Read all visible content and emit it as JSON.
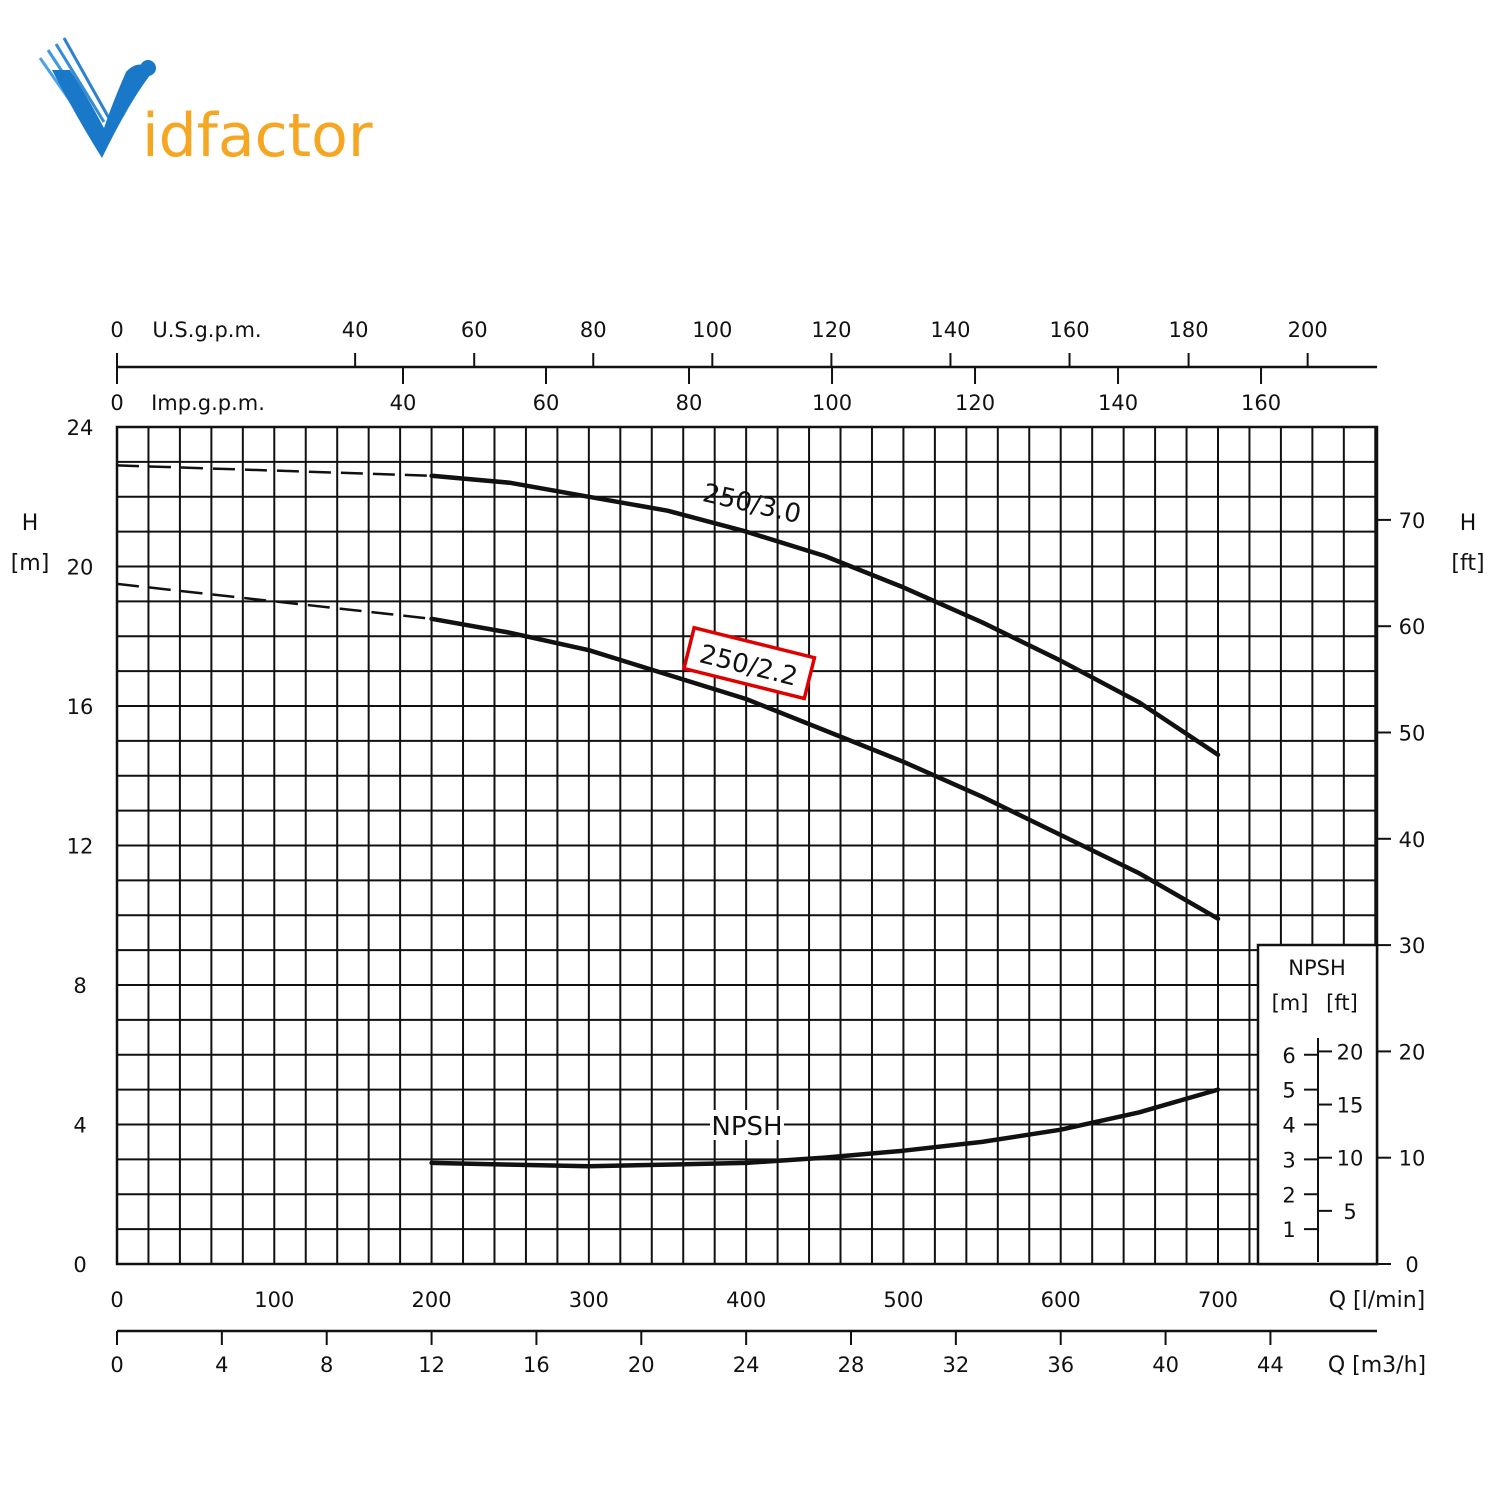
{
  "brand": {
    "name": "Vidfactor",
    "first_letter": "V",
    "rest": "idfactor",
    "blue": "#1a78c8",
    "orange": "#f5a623"
  },
  "chart_data": {
    "type": "line",
    "x": {
      "label": "Q [l/min]",
      "range": [
        0,
        800
      ],
      "ticks": [
        0,
        100,
        200,
        300,
        400,
        500,
        600,
        700
      ]
    },
    "x_m3h": {
      "label": "Q [m3/h]",
      "ticks": [
        0,
        4,
        8,
        12,
        16,
        20,
        24,
        28,
        32,
        36,
        40,
        44
      ]
    },
    "x_usgpm": {
      "label": "U.S.g.p.m.",
      "ticks": [
        0,
        40,
        60,
        80,
        100,
        120,
        140,
        160,
        180,
        200
      ]
    },
    "x_impgpm": {
      "label": "Imp.g.p.m.",
      "ticks": [
        0,
        40,
        60,
        80,
        100,
        120,
        140,
        160
      ]
    },
    "y_left": {
      "label_top": "H",
      "label_bottom": "[m]",
      "range": [
        0,
        24
      ],
      "ticks": [
        0,
        4,
        8,
        12,
        16,
        20,
        24
      ]
    },
    "y_right": {
      "label_top": "H",
      "label_bottom": "[ft]",
      "ticks": [
        0,
        10,
        20,
        30,
        40,
        50,
        60,
        70
      ]
    },
    "npsh_box": {
      "title": "NPSH",
      "unit_m": "[m]",
      "unit_ft": "[ft]",
      "m_ticks": [
        1,
        2,
        3,
        4,
        5,
        6
      ],
      "ft_ticks": [
        5,
        10,
        15,
        20
      ]
    },
    "grid": true,
    "series": [
      {
        "name": "250/3.0",
        "highlighted": false,
        "dashed": {
          "x": [
            0,
            200
          ],
          "y": [
            22.9,
            22.6
          ]
        },
        "x": [
          200,
          250,
          300,
          350,
          400,
          450,
          500,
          550,
          600,
          650,
          700
        ],
        "y": [
          22.6,
          22.4,
          22.0,
          21.6,
          21.0,
          20.3,
          19.4,
          18.4,
          17.3,
          16.1,
          14.6
        ]
      },
      {
        "name": "250/2.2",
        "highlighted": true,
        "highlight_color": "#e00000",
        "dashed": {
          "x": [
            0,
            200
          ],
          "y": [
            19.5,
            18.5
          ]
        },
        "x": [
          200,
          250,
          300,
          350,
          400,
          450,
          500,
          550,
          600,
          650,
          700
        ],
        "y": [
          18.5,
          18.1,
          17.6,
          16.9,
          16.2,
          15.3,
          14.4,
          13.4,
          12.3,
          11.2,
          9.9
        ]
      },
      {
        "name": "NPSH",
        "x": [
          200,
          250,
          300,
          350,
          400,
          450,
          500,
          550,
          600,
          650,
          700
        ],
        "y": [
          2.9,
          2.85,
          2.8,
          2.85,
          2.9,
          3.05,
          3.25,
          3.5,
          3.85,
          4.35,
          5.0
        ]
      }
    ]
  }
}
